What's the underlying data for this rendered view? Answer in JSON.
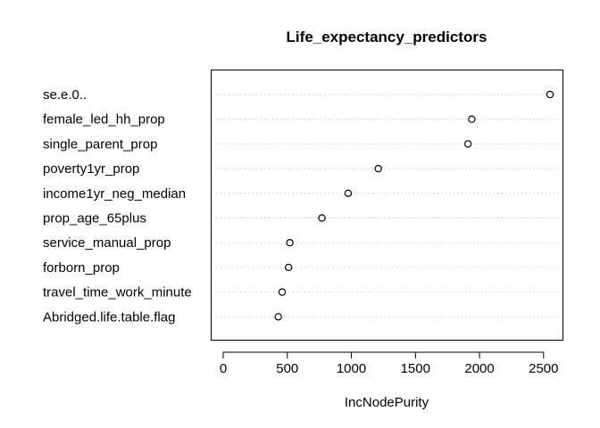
{
  "chart_data": {
    "type": "scatter",
    "subtype": "dotchart",
    "title": "Life_expectancy_predictors",
    "xlabel": "IncNodePurity",
    "ylabel": "",
    "xlim": [
      -100,
      2620
    ],
    "x_ticks": [
      0,
      500,
      1000,
      1500,
      2000,
      2500
    ],
    "x_tick_labels": [
      "0",
      "500",
      "1000",
      "1500",
      "2000",
      "2500"
    ],
    "grid": "dotted horizontal guide lines",
    "categories": [
      "se.e.0..",
      "female_led_hh_prop",
      "single_parent_prop",
      "poverty1yr_prop",
      "income1yr_neg_median",
      "prop_age_65plus",
      "service_manual_prop",
      "forborn_prop",
      "travel_time_work_minute",
      "Abridged.life.table.flag"
    ],
    "values": [
      2550,
      1940,
      1910,
      1210,
      975,
      770,
      520,
      510,
      460,
      430
    ]
  }
}
